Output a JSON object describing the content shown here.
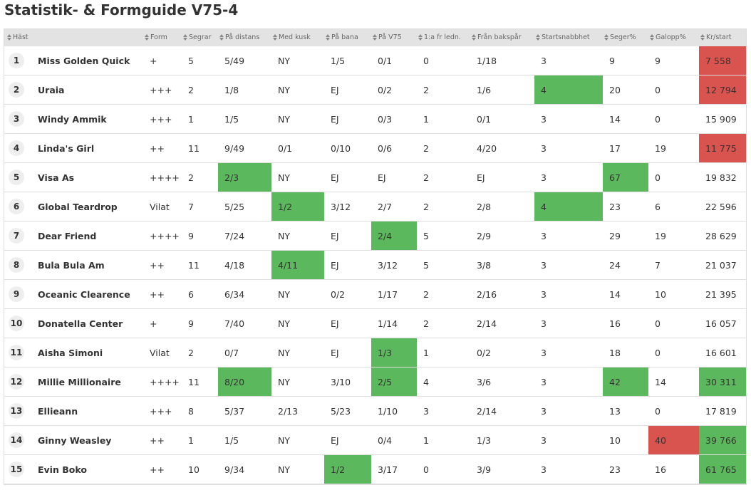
{
  "header": {
    "title": "Statistik- & Formguide V75-4"
  },
  "table": {
    "columns": [
      "Häst",
      "Form",
      "Segrar",
      "På distans",
      "Med kusk",
      "På bana",
      "På V75",
      "1:a fr ledn.",
      "Från bakspår",
      "Startsnabbhet",
      "Seger%",
      "Galopp%",
      "Kr/start"
    ],
    "rows": [
      [
        "1",
        "Miss Golden Quick",
        "+",
        "5",
        "5/49",
        "NY",
        "1/5",
        "0/1",
        "0",
        "1/18",
        "3",
        "9",
        "9",
        {
          "text": "7 558",
          "bg": "#d9534f"
        }
      ],
      [
        "2",
        "Uraia",
        "+++",
        "2",
        "1/8",
        "NY",
        "EJ",
        "0/2",
        "2",
        "1/6",
        {
          "text": "4",
          "bg": "#5cb85c"
        },
        "20",
        "0",
        {
          "text": "12 794",
          "bg": "#d9534f"
        }
      ],
      [
        "3",
        "Windy Ammik",
        "+++",
        "1",
        "1/5",
        "NY",
        "EJ",
        "0/3",
        "1",
        "0/1",
        "3",
        "14",
        "0",
        "15 909"
      ],
      [
        "4",
        "Linda's Girl",
        "++",
        "11",
        "9/49",
        "0/1",
        "0/10",
        "0/6",
        "2",
        "4/20",
        "3",
        "17",
        "19",
        {
          "text": "11 775",
          "bg": "#d9534f"
        }
      ],
      [
        "5",
        "Visa As",
        "++++",
        "2",
        {
          "text": "2/3",
          "bg": "#5cb85c"
        },
        "NY",
        "EJ",
        "EJ",
        "2",
        "EJ",
        "3",
        {
          "text": "67",
          "bg": "#5cb85c"
        },
        "0",
        "19 832"
      ],
      [
        "6",
        "Global Teardrop",
        "Vilat",
        "7",
        "5/25",
        {
          "text": "1/2",
          "bg": "#5cb85c"
        },
        "3/12",
        "2/7",
        "2",
        "2/8",
        {
          "text": "4",
          "bg": "#5cb85c"
        },
        "23",
        "6",
        "22 596"
      ],
      [
        "7",
        "Dear Friend",
        "++++",
        "9",
        "7/24",
        "NY",
        "EJ",
        {
          "text": "2/4",
          "bg": "#5cb85c"
        },
        "5",
        "2/9",
        "3",
        "29",
        "19",
        "28 629"
      ],
      [
        "8",
        "Bula Bula Am",
        "++",
        "11",
        "4/18",
        {
          "text": "4/11",
          "bg": "#5cb85c"
        },
        "EJ",
        "3/12",
        "5",
        "3/8",
        "3",
        "24",
        "7",
        "21 037"
      ],
      [
        "9",
        "Oceanic Clearence",
        "++",
        "6",
        "6/34",
        "NY",
        "0/2",
        "1/17",
        "2",
        "2/16",
        "3",
        "14",
        "10",
        "21 395"
      ],
      [
        "10",
        "Donatella Center",
        "+",
        "9",
        "7/40",
        "NY",
        "EJ",
        "1/14",
        "2",
        "2/14",
        "3",
        "16",
        "0",
        "16 057"
      ],
      [
        "11",
        "Aisha Simoni",
        "Vilat",
        "2",
        "0/7",
        "NY",
        "EJ",
        {
          "text": "1/3",
          "bg": "#5cb85c"
        },
        "1",
        "0/2",
        "3",
        "18",
        "0",
        "16 601"
      ],
      [
        "12",
        "Millie Millionaire",
        "++++",
        "11",
        {
          "text": "8/20",
          "bg": "#5cb85c"
        },
        "NY",
        "3/10",
        {
          "text": "2/5",
          "bg": "#5cb85c"
        },
        "4",
        "3/6",
        "3",
        {
          "text": "42",
          "bg": "#5cb85c"
        },
        "14",
        {
          "text": "30 311",
          "bg": "#5cb85c"
        }
      ],
      [
        "13",
        "Ellieann",
        "+++",
        "8",
        "5/37",
        "2/13",
        "5/23",
        "1/10",
        "3",
        "2/14",
        "3",
        "13",
        "0",
        "17 819"
      ],
      [
        "14",
        "Ginny Weasley",
        "++",
        "1",
        "1/5",
        "NY",
        "EJ",
        "0/4",
        "1",
        "1/3",
        "3",
        "10",
        {
          "text": "40",
          "bg": "#d9534f"
        },
        {
          "text": "39 766",
          "bg": "#5cb85c"
        }
      ],
      [
        "15",
        "Evin Boko",
        "++",
        "10",
        "9/34",
        "NY",
        {
          "text": "1/2",
          "bg": "#5cb85c"
        },
        "3/17",
        "0",
        "3/9",
        "3",
        "23",
        "16",
        {
          "text": "61 765",
          "bg": "#5cb85c"
        }
      ]
    ]
  }
}
